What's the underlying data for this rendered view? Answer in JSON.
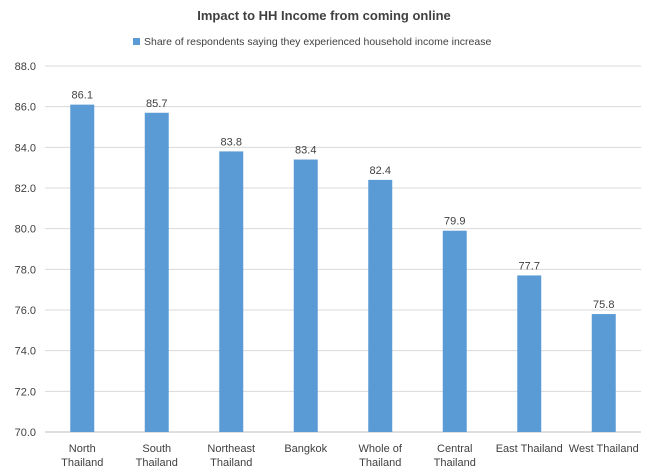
{
  "chart_data": {
    "type": "bar",
    "title": "Impact to HH Income from coming online",
    "categories": [
      [
        "North",
        "Thailand"
      ],
      [
        "South",
        "Thailand"
      ],
      [
        "Northeast",
        "Thailand"
      ],
      [
        "Bangkok"
      ],
      [
        "Whole of",
        "Thailand"
      ],
      [
        "Central",
        "Thailand"
      ],
      [
        "East Thailand"
      ],
      [
        "West Thailand"
      ]
    ],
    "series": [
      {
        "name": "Share of respondents saying they experienced household income increase",
        "values": [
          86.1,
          85.7,
          83.8,
          83.4,
          82.4,
          79.9,
          77.7,
          75.8
        ],
        "color": "#5b9bd5"
      }
    ],
    "ylim": [
      70.0,
      88.0
    ],
    "yticks": [
      "70.0",
      "72.0",
      "74.0",
      "76.0",
      "78.0",
      "80.0",
      "82.0",
      "84.0",
      "86.0",
      "88.0"
    ],
    "grid": true,
    "legend_position": "top"
  }
}
